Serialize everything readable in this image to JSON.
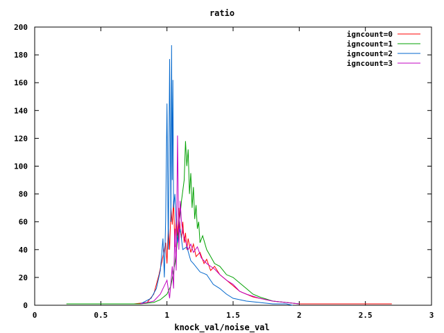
{
  "chart_data": {
    "type": "line",
    "title": "ratio",
    "xlabel": "knock_val/noise_val",
    "ylabel": "",
    "xlim": [
      0,
      3
    ],
    "ylim": [
      0,
      200
    ],
    "x_ticks": [
      "0",
      "0.5",
      "1",
      "1.5",
      "2",
      "2.5",
      "3"
    ],
    "y_ticks": [
      "0",
      "20",
      "40",
      "60",
      "80",
      "100",
      "120",
      "140",
      "160",
      "180",
      "200"
    ],
    "grid": false,
    "legend_position": "top-right",
    "series": [
      {
        "name": "igncount=0",
        "color": "#ff0000",
        "x": [
          0.24,
          0.5,
          0.75,
          0.85,
          0.9,
          0.94,
          0.97,
          0.99,
          1.0,
          1.01,
          1.02,
          1.03,
          1.04,
          1.05,
          1.06,
          1.07,
          1.08,
          1.09,
          1.1,
          1.11,
          1.12,
          1.13,
          1.14,
          1.15,
          1.16,
          1.18,
          1.2,
          1.22,
          1.25,
          1.28,
          1.3,
          1.33,
          1.36,
          1.4,
          1.45,
          1.5,
          1.55,
          1.6,
          1.65,
          1.7,
          1.75,
          1.8,
          1.9,
          2.0,
          2.2,
          2.5,
          2.7
        ],
        "y": [
          1,
          1,
          1,
          2,
          8,
          22,
          35,
          45,
          30,
          55,
          40,
          70,
          58,
          75,
          42,
          62,
          50,
          70,
          55,
          48,
          60,
          45,
          52,
          40,
          48,
          38,
          44,
          35,
          38,
          30,
          33,
          25,
          28,
          22,
          18,
          14,
          10,
          8,
          6,
          5,
          4,
          3,
          2,
          1,
          1,
          1,
          1
        ]
      },
      {
        "name": "igncount=1",
        "color": "#00a000",
        "x": [
          0.24,
          0.5,
          0.8,
          0.9,
          0.95,
          1.0,
          1.03,
          1.06,
          1.09,
          1.11,
          1.13,
          1.14,
          1.15,
          1.16,
          1.17,
          1.18,
          1.19,
          1.2,
          1.21,
          1.22,
          1.23,
          1.24,
          1.25,
          1.27,
          1.3,
          1.33,
          1.36,
          1.4,
          1.45,
          1.5,
          1.55,
          1.6,
          1.65,
          1.7,
          1.8,
          1.9,
          2.0
        ],
        "y": [
          1,
          1,
          1,
          2,
          4,
          8,
          14,
          30,
          55,
          75,
          90,
          118,
          100,
          112,
          80,
          95,
          70,
          85,
          62,
          72,
          55,
          60,
          45,
          50,
          40,
          35,
          30,
          28,
          22,
          20,
          16,
          12,
          8,
          6,
          3,
          2,
          1
        ]
      },
      {
        "name": "igncount=2",
        "color": "#0066cc",
        "x": [
          0.8,
          0.88,
          0.92,
          0.95,
          0.97,
          0.98,
          0.99,
          1.0,
          1.01,
          1.02,
          1.03,
          1.035,
          1.04,
          1.045,
          1.05,
          1.06,
          1.07,
          1.08,
          1.1,
          1.12,
          1.15,
          1.18,
          1.2,
          1.25,
          1.3,
          1.35,
          1.4,
          1.45,
          1.5,
          1.6,
          1.7,
          1.8,
          1.9,
          1.95
        ],
        "y": [
          1,
          5,
          12,
          25,
          48,
          20,
          62,
          145,
          40,
          177,
          60,
          187,
          90,
          162,
          70,
          80,
          60,
          45,
          55,
          40,
          42,
          32,
          30,
          24,
          22,
          15,
          12,
          8,
          5,
          3,
          2,
          1,
          1,
          0
        ]
      },
      {
        "name": "igncount=3",
        "color": "#c000c0",
        "x": [
          0.8,
          0.9,
          0.95,
          1.0,
          1.02,
          1.04,
          1.05,
          1.06,
          1.07,
          1.08,
          1.09,
          1.1,
          1.11,
          1.12,
          1.14,
          1.16,
          1.18,
          1.2,
          1.23,
          1.26,
          1.3,
          1.33,
          1.36,
          1.4,
          1.45,
          1.5,
          1.55,
          1.6,
          1.7,
          1.8,
          1.9,
          2.0
        ],
        "y": [
          1,
          3,
          8,
          18,
          5,
          28,
          12,
          55,
          25,
          122,
          40,
          75,
          60,
          52,
          46,
          40,
          44,
          38,
          42,
          34,
          30,
          28,
          26,
          22,
          18,
          15,
          10,
          8,
          5,
          3,
          2,
          1
        ]
      }
    ]
  }
}
